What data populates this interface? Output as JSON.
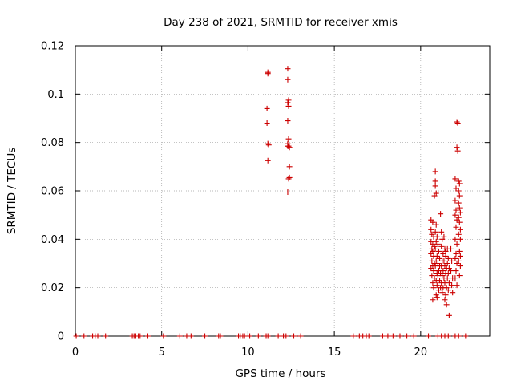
{
  "chart_data": {
    "type": "scatter",
    "title": "Day 238 of 2021, SRMTID for receiver xmis",
    "xlabel": "GPS time / hours",
    "ylabel": "SRMTID / TECUs",
    "xlim": [
      0,
      24
    ],
    "ylim": [
      0,
      0.12
    ],
    "xticks": [
      0,
      5,
      10,
      15,
      20
    ],
    "yticks": [
      0,
      0.02,
      0.04,
      0.06,
      0.08,
      0.1,
      0.12
    ],
    "xtick_labels": [
      "0",
      "5",
      "10",
      "15",
      "20"
    ],
    "ytick_labels": [
      "0",
      "0.02",
      "0.04",
      "0.06",
      "0.08",
      "0.1",
      "0.12"
    ],
    "grid": true,
    "marker": "+",
    "series": [
      {
        "name": "SRMTID",
        "color": "#cc0000",
        "points": [
          [
            0.05,
            0
          ],
          [
            0.5,
            0
          ],
          [
            1.0,
            0
          ],
          [
            1.15,
            0
          ],
          [
            1.3,
            0
          ],
          [
            1.75,
            0
          ],
          [
            3.3,
            0
          ],
          [
            3.4,
            0
          ],
          [
            3.5,
            0
          ],
          [
            3.65,
            0
          ],
          [
            3.75,
            0
          ],
          [
            4.2,
            0
          ],
          [
            5.1,
            0
          ],
          [
            6.05,
            0
          ],
          [
            6.45,
            0
          ],
          [
            6.7,
            0
          ],
          [
            7.5,
            0
          ],
          [
            8.3,
            0
          ],
          [
            8.4,
            0
          ],
          [
            9.45,
            0
          ],
          [
            9.55,
            0
          ],
          [
            9.7,
            0
          ],
          [
            9.8,
            0
          ],
          [
            10.1,
            0
          ],
          [
            10.6,
            0
          ],
          [
            11.05,
            0
          ],
          [
            11.15,
            0
          ],
          [
            11.75,
            0
          ],
          [
            12.05,
            0
          ],
          [
            12.2,
            0
          ],
          [
            12.65,
            0
          ],
          [
            13.05,
            0
          ],
          [
            16.1,
            0
          ],
          [
            16.45,
            0
          ],
          [
            16.65,
            0
          ],
          [
            16.85,
            0
          ],
          [
            17.0,
            0
          ],
          [
            17.8,
            0
          ],
          [
            18.1,
            0
          ],
          [
            18.4,
            0
          ],
          [
            18.8,
            0
          ],
          [
            19.2,
            0
          ],
          [
            19.6,
            0
          ],
          [
            20.45,
            0
          ],
          [
            21.0,
            0
          ],
          [
            21.2,
            0
          ],
          [
            21.4,
            0
          ],
          [
            21.6,
            0
          ],
          [
            22.0,
            0
          ],
          [
            22.2,
            0
          ],
          [
            22.6,
            0
          ],
          [
            11.15,
            0.109
          ],
          [
            11.15,
            0.1085
          ],
          [
            11.1,
            0.094
          ],
          [
            11.1,
            0.088
          ],
          [
            11.15,
            0.0795
          ],
          [
            11.2,
            0.079
          ],
          [
            11.15,
            0.0725
          ],
          [
            12.3,
            0.1105
          ],
          [
            12.3,
            0.106
          ],
          [
            12.35,
            0.0975
          ],
          [
            12.3,
            0.0965
          ],
          [
            12.35,
            0.095
          ],
          [
            12.3,
            0.089
          ],
          [
            12.35,
            0.0815
          ],
          [
            12.3,
            0.0795
          ],
          [
            12.4,
            0.078
          ],
          [
            12.35,
            0.0785
          ],
          [
            12.3,
            0.0785
          ],
          [
            12.4,
            0.07
          ],
          [
            12.4,
            0.0655
          ],
          [
            12.35,
            0.065
          ],
          [
            12.3,
            0.0595
          ],
          [
            20.6,
            0.048
          ],
          [
            20.7,
            0.047
          ],
          [
            20.6,
            0.044
          ],
          [
            20.65,
            0.042
          ],
          [
            20.75,
            0.041
          ],
          [
            20.6,
            0.039
          ],
          [
            20.7,
            0.038
          ],
          [
            20.8,
            0.037
          ],
          [
            20.65,
            0.036
          ],
          [
            20.7,
            0.035
          ],
          [
            20.6,
            0.034
          ],
          [
            20.75,
            0.033
          ],
          [
            20.65,
            0.031
          ],
          [
            20.8,
            0.03
          ],
          [
            20.7,
            0.029
          ],
          [
            20.6,
            0.028
          ],
          [
            20.75,
            0.027
          ],
          [
            20.65,
            0.025
          ],
          [
            20.8,
            0.024
          ],
          [
            20.7,
            0.022
          ],
          [
            20.75,
            0.02
          ],
          [
            20.7,
            0.015
          ],
          [
            20.85,
            0.068
          ],
          [
            20.85,
            0.064
          ],
          [
            20.85,
            0.062
          ],
          [
            20.9,
            0.059
          ],
          [
            20.8,
            0.058
          ],
          [
            20.9,
            0.046
          ],
          [
            20.85,
            0.043
          ],
          [
            20.95,
            0.041
          ],
          [
            20.9,
            0.039
          ],
          [
            20.85,
            0.036
          ],
          [
            20.95,
            0.033
          ],
          [
            20.9,
            0.031
          ],
          [
            20.85,
            0.029
          ],
          [
            20.95,
            0.026
          ],
          [
            20.9,
            0.023
          ],
          [
            20.95,
            0.021
          ],
          [
            20.9,
            0.017
          ],
          [
            20.95,
            0.016
          ],
          [
            21.0,
            0.038
          ],
          [
            21.05,
            0.035
          ],
          [
            21.1,
            0.032
          ],
          [
            21.0,
            0.03
          ],
          [
            21.1,
            0.029
          ],
          [
            21.05,
            0.027
          ],
          [
            21.15,
            0.026
          ],
          [
            21.0,
            0.025
          ],
          [
            21.1,
            0.023
          ],
          [
            21.15,
            0.02
          ],
          [
            21.05,
            0.019
          ],
          [
            21.15,
            0.0505
          ],
          [
            21.2,
            0.043
          ],
          [
            21.25,
            0.04
          ],
          [
            21.2,
            0.037
          ],
          [
            21.3,
            0.034
          ],
          [
            21.25,
            0.031
          ],
          [
            21.2,
            0.029
          ],
          [
            21.3,
            0.027
          ],
          [
            21.25,
            0.025
          ],
          [
            21.2,
            0.022
          ],
          [
            21.3,
            0.02
          ],
          [
            21.25,
            0.018
          ],
          [
            21.35,
            0.041
          ],
          [
            21.4,
            0.036
          ],
          [
            21.45,
            0.033
          ],
          [
            21.35,
            0.031
          ],
          [
            21.4,
            0.029
          ],
          [
            21.5,
            0.028
          ],
          [
            21.45,
            0.026
          ],
          [
            21.35,
            0.024
          ],
          [
            21.4,
            0.022
          ],
          [
            21.5,
            0.02
          ],
          [
            21.45,
            0.017
          ],
          [
            21.4,
            0.015
          ],
          [
            21.5,
            0.013
          ],
          [
            21.45,
            0.035
          ],
          [
            21.55,
            0.036
          ],
          [
            21.6,
            0.032
          ],
          [
            21.55,
            0.03
          ],
          [
            21.65,
            0.028
          ],
          [
            21.6,
            0.026
          ],
          [
            21.55,
            0.024
          ],
          [
            21.65,
            0.022
          ],
          [
            21.6,
            0.019
          ],
          [
            21.65,
            0.0085
          ],
          [
            21.75,
            0.036
          ],
          [
            21.8,
            0.031
          ],
          [
            21.75,
            0.027
          ],
          [
            21.85,
            0.024
          ],
          [
            21.8,
            0.021
          ],
          [
            21.85,
            0.018
          ],
          [
            22.0,
            0.065
          ],
          [
            22.05,
            0.061
          ],
          [
            22.0,
            0.056
          ],
          [
            22.05,
            0.052
          ],
          [
            22.0,
            0.05
          ],
          [
            22.1,
            0.048
          ],
          [
            22.05,
            0.045
          ],
          [
            22.0,
            0.04
          ],
          [
            22.1,
            0.038
          ],
          [
            22.05,
            0.034
          ],
          [
            22.0,
            0.032
          ],
          [
            22.1,
            0.03
          ],
          [
            22.05,
            0.027
          ],
          [
            22.0,
            0.024
          ],
          [
            22.1,
            0.021
          ],
          [
            22.1,
            0.0885
          ],
          [
            22.15,
            0.088
          ],
          [
            22.1,
            0.078
          ],
          [
            22.15,
            0.0765
          ],
          [
            22.2,
            0.064
          ],
          [
            22.25,
            0.063
          ],
          [
            22.2,
            0.06
          ],
          [
            22.25,
            0.058
          ],
          [
            22.2,
            0.055
          ],
          [
            22.25,
            0.053
          ],
          [
            22.3,
            0.051
          ],
          [
            22.2,
            0.049
          ],
          [
            22.25,
            0.047
          ],
          [
            22.3,
            0.044
          ],
          [
            22.2,
            0.042
          ],
          [
            22.3,
            0.04
          ],
          [
            22.25,
            0.035
          ],
          [
            22.3,
            0.033
          ],
          [
            22.2,
            0.031
          ],
          [
            22.3,
            0.029
          ],
          [
            22.25,
            0.025
          ]
        ]
      }
    ]
  }
}
